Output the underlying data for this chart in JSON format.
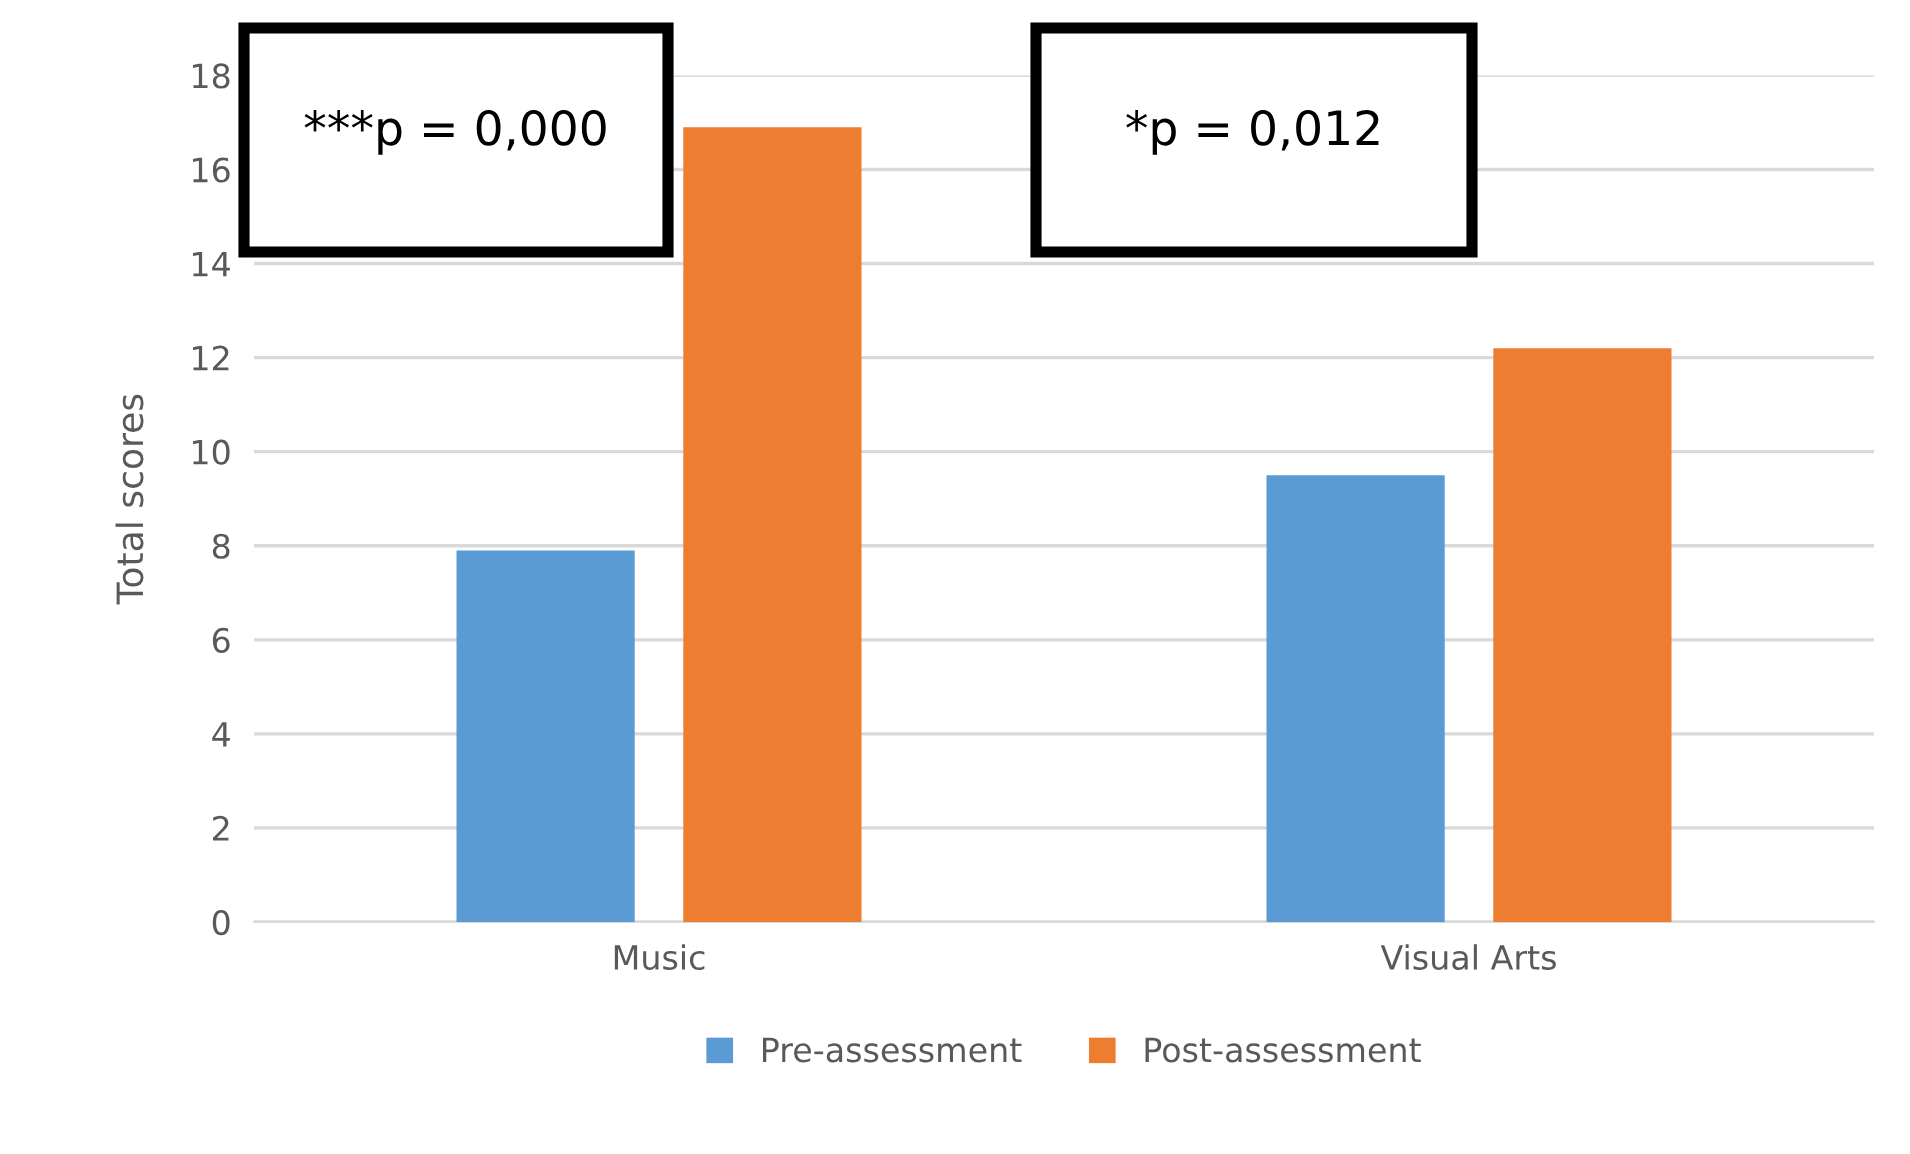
{
  "chart_data": {
    "type": "bar",
    "ylabel": "Total scores",
    "categories": [
      "Music",
      "Visual Arts"
    ],
    "series": [
      {
        "name": "Pre-assessment",
        "color": "#5b9bd5",
        "values": [
          7.9,
          9.5
        ]
      },
      {
        "name": "Post-assessment",
        "color": "#ed7d31",
        "values": [
          16.9,
          12.2
        ]
      }
    ],
    "ylim": [
      0,
      18
    ],
    "yticks": [
      0,
      2,
      4,
      6,
      8,
      10,
      12,
      14,
      16,
      18
    ],
    "grid": "y",
    "legend": "bottom",
    "annotations": [
      "***p = 0,000",
      "*p = 0,012"
    ]
  }
}
